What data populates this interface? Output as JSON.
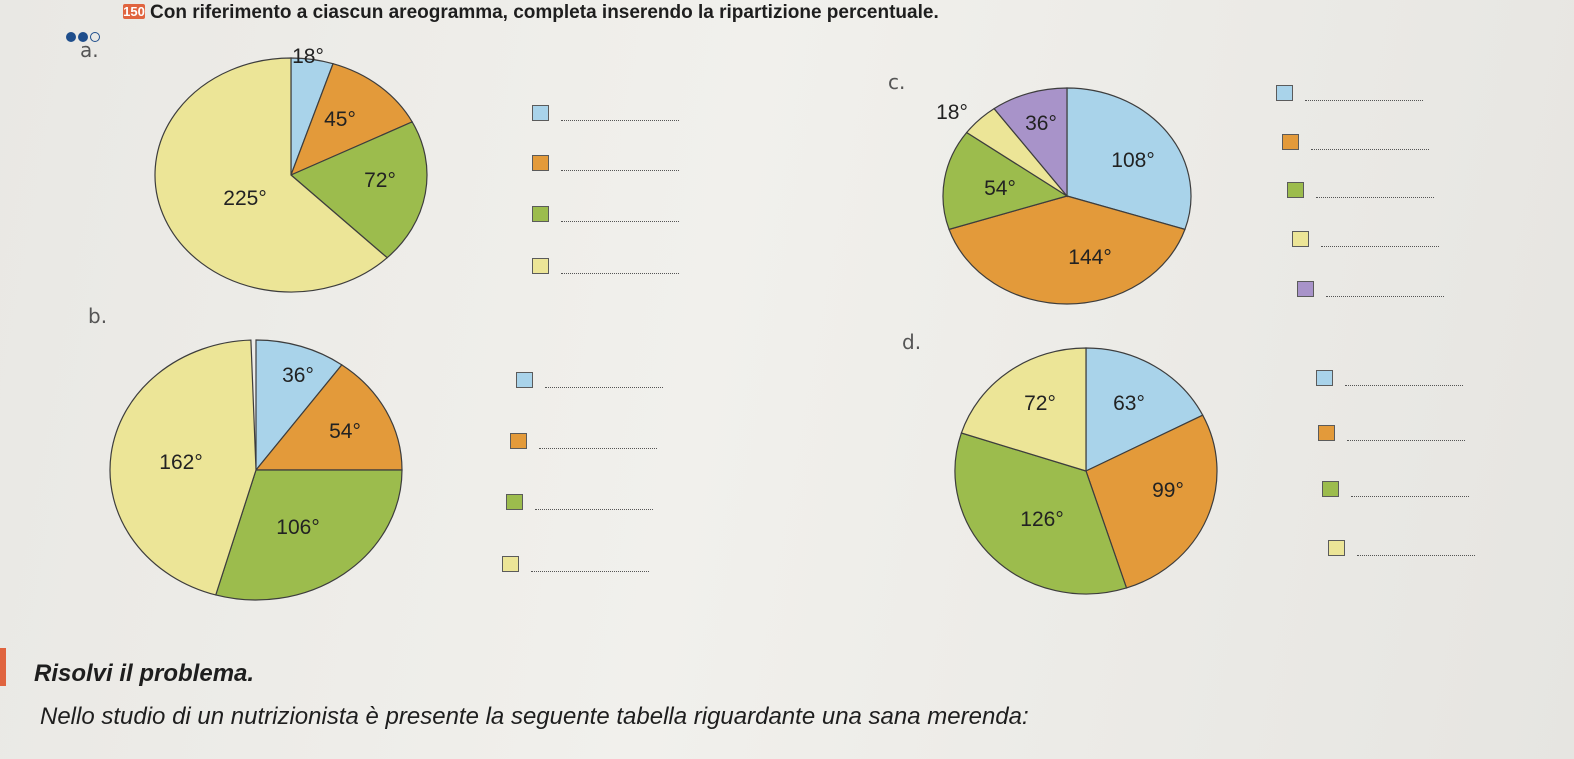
{
  "exercise": {
    "number": "150",
    "instruction": "Con riferimento a ciascun areogramma, completa inserendo la ripartizione percentuale."
  },
  "colors": {
    "blue": "#a9d3ea",
    "orange": "#e39a3a",
    "green": "#9cbc4d",
    "yellow": "#ece597",
    "purple": "#a893c9"
  },
  "charts": [
    {
      "label": "a.",
      "slices": [
        {
          "color": "blue",
          "degrees": 18,
          "label": "18°"
        },
        {
          "color": "orange",
          "degrees": 45,
          "label": "45°"
        },
        {
          "color": "green",
          "degrees": 72,
          "label": "72°"
        },
        {
          "color": "yellow",
          "degrees": 225,
          "label": "225°"
        }
      ],
      "legend": [
        "blue",
        "orange",
        "green",
        "yellow"
      ]
    },
    {
      "label": "b.",
      "slices": [
        {
          "color": "blue",
          "degrees": 36,
          "label": "36°"
        },
        {
          "color": "orange",
          "degrees": 54,
          "label": "54°"
        },
        {
          "color": "green",
          "degrees": 106,
          "label": "106°"
        },
        {
          "color": "yellow",
          "degrees": 162,
          "label": "162°"
        }
      ],
      "legend": [
        "blue",
        "orange",
        "green",
        "yellow"
      ]
    },
    {
      "label": "c.",
      "slices": [
        {
          "color": "blue",
          "degrees": 108,
          "label": "108°"
        },
        {
          "color": "orange",
          "degrees": 144,
          "label": "144°"
        },
        {
          "color": "green",
          "degrees": 54,
          "label": "54°"
        },
        {
          "color": "yellow",
          "degrees": 18,
          "label": "18°"
        },
        {
          "color": "purple",
          "degrees": 36,
          "label": "36°"
        }
      ],
      "legend": [
        "blue",
        "orange",
        "green",
        "yellow",
        "purple"
      ]
    },
    {
      "label": "d.",
      "slices": [
        {
          "color": "blue",
          "degrees": 63,
          "label": "63°"
        },
        {
          "color": "orange",
          "degrees": 99,
          "label": "99°"
        },
        {
          "color": "green",
          "degrees": 126,
          "label": "126°"
        },
        {
          "color": "yellow",
          "degrees": 72,
          "label": "72°"
        }
      ],
      "legend": [
        "blue",
        "orange",
        "green",
        "yellow"
      ]
    }
  ],
  "section": {
    "title": "Risolvi il problema.",
    "text": "Nello studio di un nutrizionista è presente la seguente tabella riguardante una sana merenda:"
  }
}
